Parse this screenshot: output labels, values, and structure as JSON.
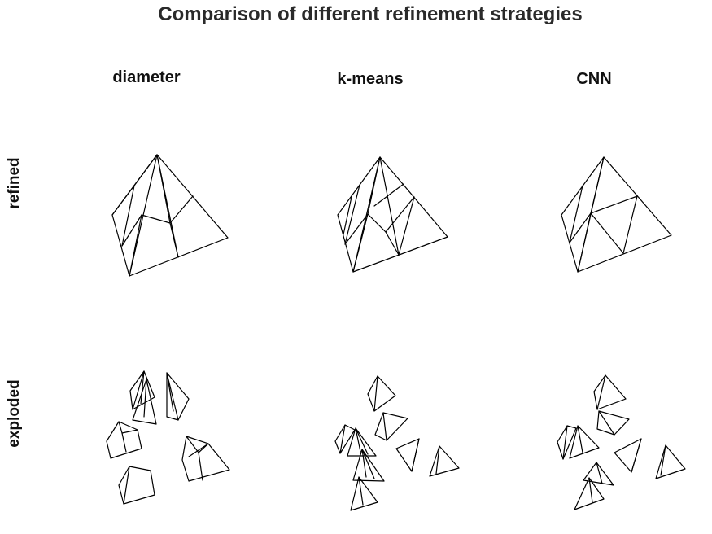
{
  "title": "Comparison of different refinement strategies",
  "columns": [
    {
      "key": "diameter",
      "label": "diameter"
    },
    {
      "key": "kmeans",
      "label": "k-means"
    },
    {
      "key": "cnn",
      "label": "CNN"
    }
  ],
  "rows": [
    {
      "key": "refined",
      "label": "refined"
    },
    {
      "key": "exploded",
      "label": "exploded"
    }
  ]
}
